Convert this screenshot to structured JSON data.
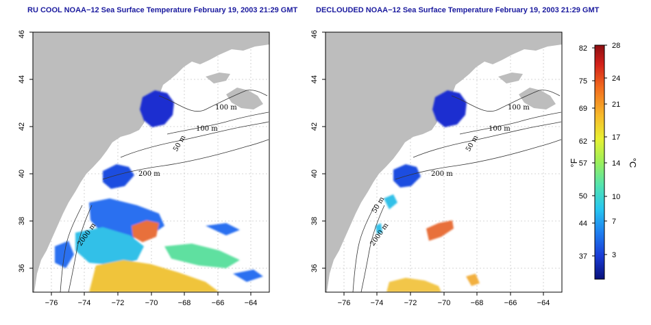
{
  "panels": [
    {
      "title": "RU COOL NOAA−12 Sea Surface Temperature February 19, 2003 21:29 GMT",
      "x_ticks": [
        "−76",
        "−74",
        "−72",
        "−70",
        "−68",
        "−66",
        "−64"
      ],
      "y_ticks": [
        "36",
        "38",
        "40",
        "42",
        "44",
        "46"
      ],
      "contour_labels": [
        "100 m",
        "100 m",
        "50 m",
        "200 m",
        "2000 m"
      ]
    },
    {
      "title": "DECLOUDED NOAA−12 Sea Surface Temperature February 19, 2003 21:29 GMT",
      "x_ticks": [
        "−76",
        "−74",
        "−72",
        "−70",
        "−68",
        "−66",
        "−64"
      ],
      "y_ticks": [
        "36",
        "38",
        "40",
        "42",
        "44",
        "46"
      ],
      "contour_labels": [
        "100 m",
        "100 m",
        "50 m",
        "200 m",
        "50 m",
        "2000 m"
      ]
    }
  ],
  "colorbar": {
    "fahrenheit_label": "°F",
    "celsius_label": "°C",
    "fahrenheit_ticks": [
      "82",
      "75",
      "69",
      "62",
      "57",
      "50",
      "44",
      "37"
    ],
    "celsius_ticks": [
      "28",
      "24",
      "21",
      "17",
      "14",
      "10",
      "7",
      "3"
    ],
    "colors": [
      "#08107a",
      "#1a3cd6",
      "#1e7ff0",
      "#27c6f0",
      "#52e3b0",
      "#9bef5a",
      "#e8f032",
      "#f7b92a",
      "#f26b1e",
      "#d2201a",
      "#8c0f12"
    ]
  }
}
